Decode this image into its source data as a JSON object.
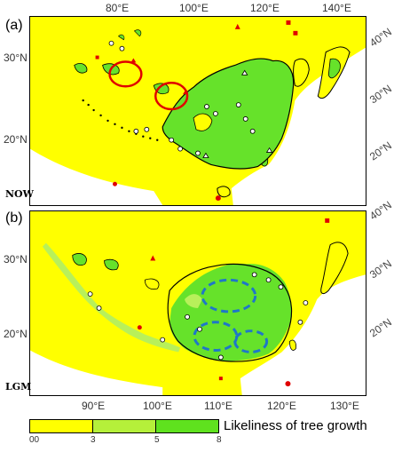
{
  "panels": [
    {
      "label": "(a)",
      "period": "NOW",
      "lon_labels": [
        "80°E",
        "100°E",
        "120°E",
        "140°E"
      ],
      "lat_left": [
        "30°N",
        "20°N"
      ],
      "lat_right": [
        "40°N",
        "30°N",
        "20°N"
      ]
    },
    {
      "label": "(b)",
      "period": "LGM",
      "lon_labels": [
        "90°E",
        "100°E",
        "110°E",
        "120°E",
        "130°E"
      ],
      "lat_left": [
        "30°N",
        "20°N"
      ],
      "lat_right": [
        "40°N",
        "30°N",
        "20°N"
      ]
    }
  ],
  "legend": {
    "title": "Likeliness of tree growth",
    "ticks": [
      "00",
      "3",
      "5",
      "8"
    ],
    "colors": {
      "low": "#ffff00",
      "mid": "#b5f03a",
      "high": "#5fe21e"
    }
  },
  "colors": {
    "land": "#ffff00",
    "forest": "#66e22a",
    "forest_light": "#b8f05a",
    "sea": "#ffffff",
    "refugia_circle": "#e00000",
    "refugia_dashed": "#1f77c8",
    "fossil_site": "#e00000"
  }
}
